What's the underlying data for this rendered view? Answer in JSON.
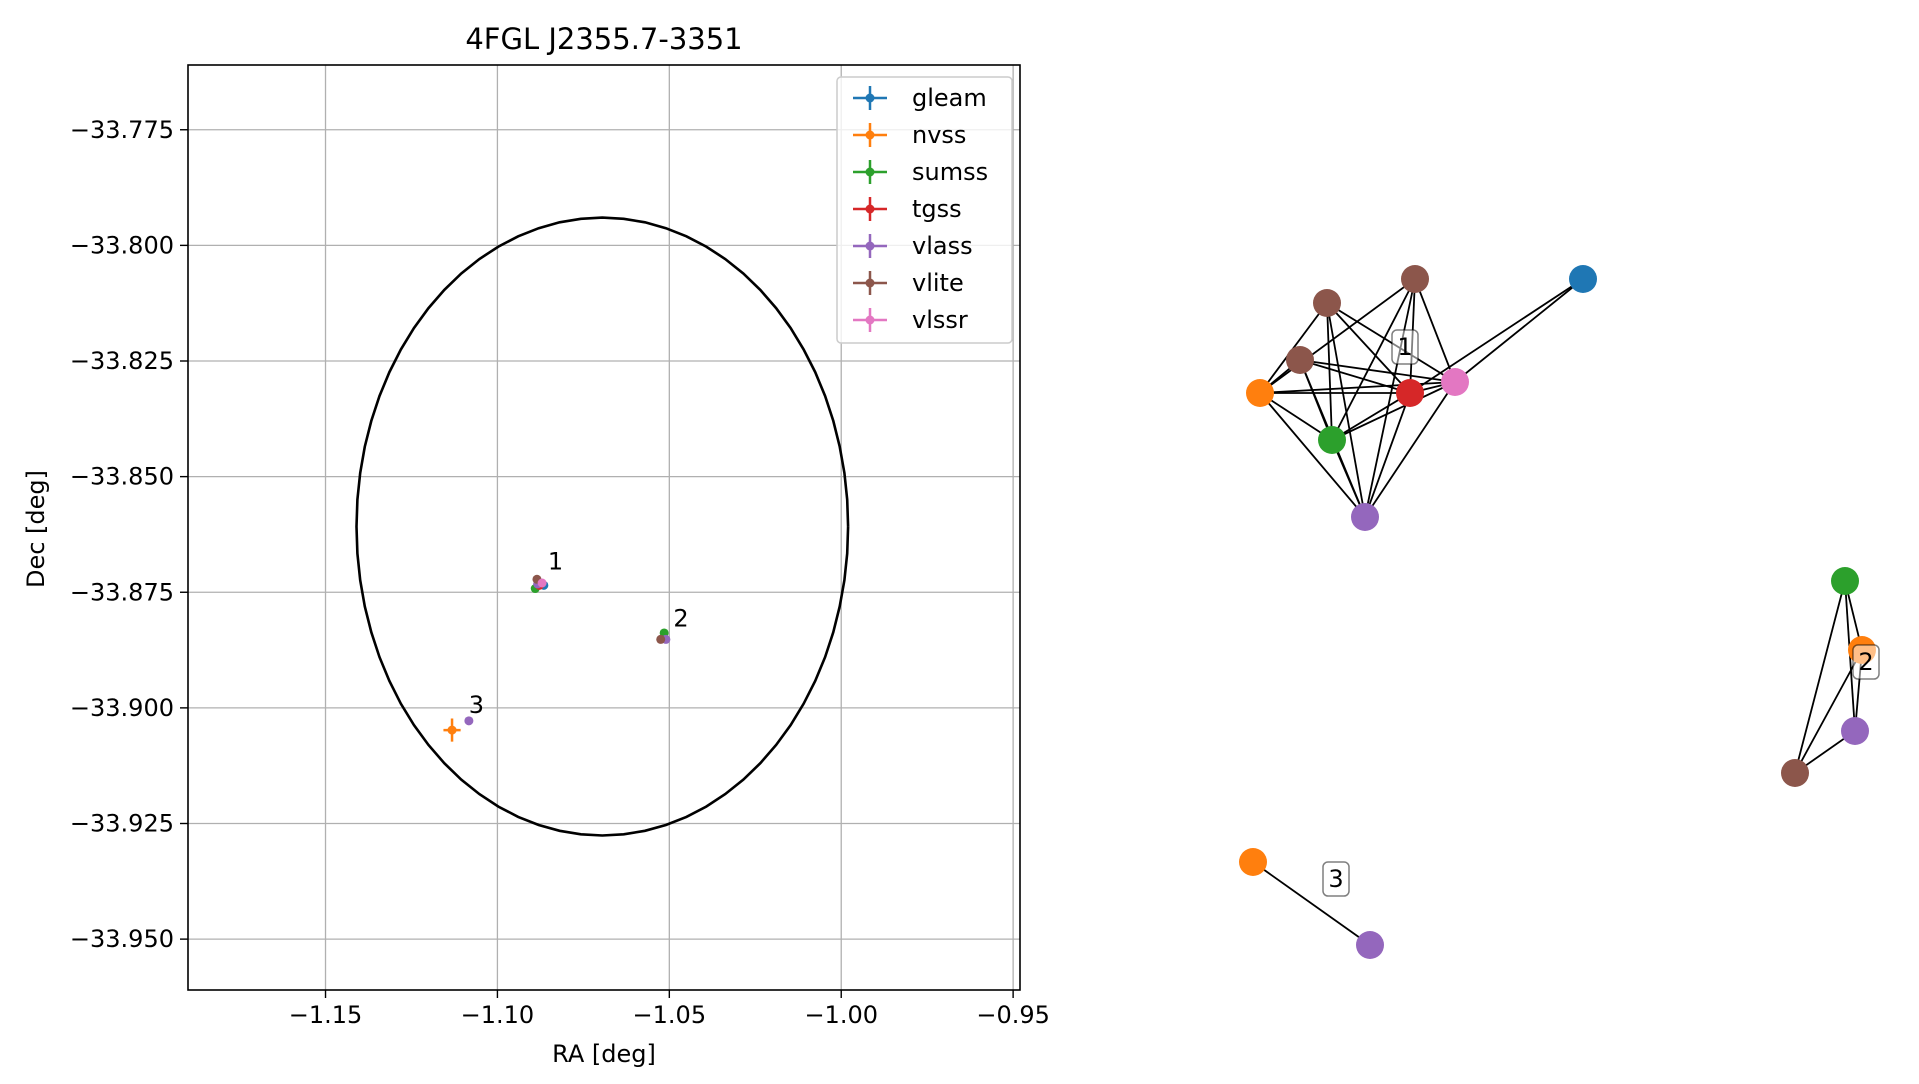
{
  "chart_data": [
    {
      "type": "scatter",
      "title": "4FGL J2355.7-3351",
      "xlabel": "RA [deg]",
      "ylabel": "Dec [deg]",
      "xlim": [
        -1.19,
        -0.948
      ],
      "ylim": [
        -33.961,
        -33.761
      ],
      "x_ticks": [
        -1.15,
        -1.1,
        -1.05,
        -1.0,
        -0.95
      ],
      "x_tick_labels": [
        "−1.15",
        "−1.10",
        "−1.05",
        "−1.00",
        "−0.95"
      ],
      "y_ticks": [
        -33.775,
        -33.8,
        -33.825,
        -33.85,
        -33.875,
        -33.9,
        -33.925,
        -33.95
      ],
      "y_tick_labels": [
        "−33.775",
        "−33.800",
        "−33.825",
        "−33.850",
        "−33.875",
        "−33.900",
        "−33.925",
        "−33.950"
      ],
      "grid": true,
      "legend_position": "top-right",
      "colors": {
        "gleam": "#1f77b4",
        "nvss": "#ff7f0e",
        "sumss": "#2ca02c",
        "tgss": "#d62728",
        "vlass": "#9467bd",
        "vlite": "#8c564b",
        "vlssr": "#e377c2"
      },
      "series": [
        {
          "name": "gleam",
          "points": [
            {
              "x": -1.0865,
              "y": -33.8735,
              "xerr": 0.0008,
              "yerr": 0.0008
            }
          ]
        },
        {
          "name": "nvss",
          "points": [
            {
              "x": -1.1132,
              "y": -33.9048,
              "xerr": 0.0025,
              "yerr": 0.0025
            }
          ]
        },
        {
          "name": "sumss",
          "points": [
            {
              "x": -1.089,
              "y": -33.8742,
              "xerr": 0.0008,
              "yerr": 0.0008
            },
            {
              "x": -1.0515,
              "y": -33.8838,
              "xerr": 0.0008,
              "yerr": 0.0008
            }
          ]
        },
        {
          "name": "tgss",
          "points": [
            {
              "x": -1.0878,
              "y": -33.8735,
              "xerr": 0.0008,
              "yerr": 0.0008
            }
          ]
        },
        {
          "name": "vlass",
          "points": [
            {
              "x": -1.0883,
              "y": -33.8732,
              "xerr": 0.0006,
              "yerr": 0.0006
            },
            {
              "x": -1.051,
              "y": -33.8852,
              "xerr": 0.0006,
              "yerr": 0.0006
            },
            {
              "x": -1.1083,
              "y": -33.9028,
              "xerr": 0.0006,
              "yerr": 0.0006
            }
          ]
        },
        {
          "name": "vlite",
          "points": [
            {
              "x": -1.0885,
              "y": -33.8722,
              "xerr": 0.0008,
              "yerr": 0.0008
            },
            {
              "x": -1.0525,
              "y": -33.8852,
              "xerr": 0.0008,
              "yerr": 0.0008
            }
          ]
        },
        {
          "name": "vlssr",
          "points": [
            {
              "x": -1.087,
              "y": -33.873,
              "xerr": 0.0008,
              "yerr": 0.0008
            }
          ]
        }
      ],
      "ellipse": {
        "center_x": -1.0695,
        "center_y": -33.8608,
        "semi_x": 0.0715,
        "semi_y": 0.0668
      },
      "annotations": [
        {
          "text": "1",
          "x": -1.0865,
          "y": -33.8705
        },
        {
          "text": "2",
          "x": -1.05,
          "y": -33.8828
        },
        {
          "text": "3",
          "x": -1.1095,
          "y": -33.9015
        }
      ]
    },
    {
      "type": "network",
      "node_colors": {
        "gleam": "#1f77b4",
        "nvss": "#ff7f0e",
        "sumss": "#2ca02c",
        "tgss": "#d62728",
        "vlass": "#9467bd",
        "vlite": "#8c564b",
        "vlssr": "#e377c2"
      },
      "clusters": [
        {
          "label": "1",
          "nodes": [
            {
              "id": "a",
              "catalog": "gleam"
            },
            {
              "id": "b",
              "catalog": "vlite"
            },
            {
              "id": "c",
              "catalog": "vlite"
            },
            {
              "id": "d",
              "catalog": "vlite"
            },
            {
              "id": "e",
              "catalog": "nvss"
            },
            {
              "id": "f",
              "catalog": "tgss"
            },
            {
              "id": "g",
              "catalog": "vlssr"
            },
            {
              "id": "h",
              "catalog": "sumss"
            },
            {
              "id": "i",
              "catalog": "vlass"
            }
          ],
          "edges": [
            [
              "a",
              "g"
            ],
            [
              "a",
              "f"
            ],
            [
              "b",
              "e"
            ],
            [
              "b",
              "g"
            ],
            [
              "b",
              "h"
            ],
            [
              "b",
              "i"
            ],
            [
              "b",
              "f"
            ],
            [
              "c",
              "e"
            ],
            [
              "c",
              "f"
            ],
            [
              "c",
              "g"
            ],
            [
              "c",
              "h"
            ],
            [
              "c",
              "i"
            ],
            [
              "d",
              "e"
            ],
            [
              "d",
              "f"
            ],
            [
              "d",
              "g"
            ],
            [
              "d",
              "h"
            ],
            [
              "d",
              "i"
            ],
            [
              "e",
              "f"
            ],
            [
              "e",
              "g"
            ],
            [
              "e",
              "h"
            ],
            [
              "e",
              "i"
            ],
            [
              "f",
              "g"
            ],
            [
              "f",
              "h"
            ],
            [
              "f",
              "i"
            ],
            [
              "g",
              "h"
            ],
            [
              "g",
              "i"
            ],
            [
              "h",
              "i"
            ]
          ]
        },
        {
          "label": "2",
          "nodes": [
            {
              "id": "j",
              "catalog": "sumss"
            },
            {
              "id": "k",
              "catalog": "nvss"
            },
            {
              "id": "l",
              "catalog": "vlass"
            },
            {
              "id": "m",
              "catalog": "vlite"
            }
          ],
          "edges": [
            [
              "j",
              "k"
            ],
            [
              "j",
              "l"
            ],
            [
              "j",
              "m"
            ],
            [
              "k",
              "l"
            ],
            [
              "k",
              "m"
            ],
            [
              "l",
              "m"
            ]
          ]
        },
        {
          "label": "3",
          "nodes": [
            {
              "id": "n",
              "catalog": "nvss"
            },
            {
              "id": "o",
              "catalog": "vlass"
            }
          ],
          "edges": [
            [
              "n",
              "o"
            ]
          ]
        }
      ]
    }
  ]
}
